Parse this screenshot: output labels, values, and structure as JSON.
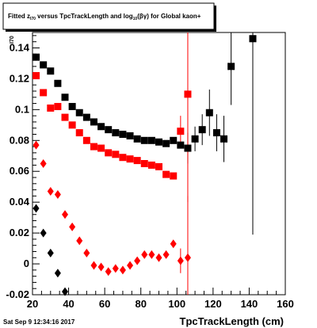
{
  "chart_data": {
    "type": "scatter",
    "title": "Fitted  z_70 versus TpcTrackLength and log_10(βγ) for Global kaon+",
    "title_parts": {
      "pre": "Fitted  z",
      "sub1": "I70",
      "mid": " versus TpcTrackLength and log",
      "sub2": "10",
      "post": "(βγ) for Global kaon+"
    },
    "xlabel": "TpcTrackLength (cm)",
    "ylabel": "I70",
    "xlim": [
      20,
      160
    ],
    "ylim": [
      -0.02,
      0.15
    ],
    "xticks": [
      20,
      40,
      60,
      80,
      100,
      120,
      140,
      160
    ],
    "yticks": [
      -0.02,
      0,
      0.02,
      0.04,
      0.06,
      0.08,
      0.1,
      0.12,
      0.14
    ],
    "ytick_labels": [
      "-0.02",
      "0",
      "0.02",
      "0.04",
      "0.06",
      "0.08",
      "0.1",
      "0.12",
      "0.14"
    ],
    "datestamp": "Sat Sep  9 12:34:16 2017",
    "series": [
      {
        "color": "#000000",
        "marker": "square",
        "points": [
          {
            "x": 22,
            "y": 0.134
          },
          {
            "x": 26,
            "y": 0.129
          },
          {
            "x": 30,
            "y": 0.125
          },
          {
            "x": 34,
            "y": 0.117
          },
          {
            "x": 38,
            "y": 0.108
          },
          {
            "x": 42,
            "y": 0.102
          },
          {
            "x": 46,
            "y": 0.098
          },
          {
            "x": 50,
            "y": 0.095
          },
          {
            "x": 54,
            "y": 0.092
          },
          {
            "x": 58,
            "y": 0.089
          },
          {
            "x": 62,
            "y": 0.087
          },
          {
            "x": 66,
            "y": 0.085
          },
          {
            "x": 70,
            "y": 0.084
          },
          {
            "x": 74,
            "y": 0.083
          },
          {
            "x": 78,
            "y": 0.081
          },
          {
            "x": 82,
            "y": 0.08
          },
          {
            "x": 86,
            "y": 0.08
          },
          {
            "x": 90,
            "y": 0.079
          },
          {
            "x": 94,
            "y": 0.078
          },
          {
            "x": 98,
            "y": 0.08
          },
          {
            "x": 102,
            "y": 0.077
          },
          {
            "x": 106,
            "y": 0.075,
            "err": 0.01
          },
          {
            "x": 110,
            "y": 0.081,
            "err": 0.008
          },
          {
            "x": 114,
            "y": 0.087,
            "err": 0.01
          },
          {
            "x": 118,
            "y": 0.098,
            "err": 0.015
          },
          {
            "x": 122,
            "y": 0.085,
            "err": 0.012
          },
          {
            "x": 126,
            "y": 0.081,
            "err": 0.015
          },
          {
            "x": 130,
            "y": 0.128,
            "err": 0.025
          },
          {
            "x": 142,
            "y": 0.146,
            "err": 0.127
          }
        ]
      },
      {
        "color": "#ff0000",
        "marker": "square",
        "points": [
          {
            "x": 22,
            "y": 0.122
          },
          {
            "x": 26,
            "y": 0.111
          },
          {
            "x": 30,
            "y": 0.101
          },
          {
            "x": 34,
            "y": 0.102
          },
          {
            "x": 38,
            "y": 0.095
          },
          {
            "x": 42,
            "y": 0.09
          },
          {
            "x": 46,
            "y": 0.085
          },
          {
            "x": 50,
            "y": 0.08
          },
          {
            "x": 54,
            "y": 0.076
          },
          {
            "x": 58,
            "y": 0.075
          },
          {
            "x": 62,
            "y": 0.072
          },
          {
            "x": 66,
            "y": 0.071
          },
          {
            "x": 70,
            "y": 0.069
          },
          {
            "x": 74,
            "y": 0.068
          },
          {
            "x": 78,
            "y": 0.067
          },
          {
            "x": 82,
            "y": 0.065
          },
          {
            "x": 86,
            "y": 0.064
          },
          {
            "x": 90,
            "y": 0.063
          },
          {
            "x": 94,
            "y": 0.058
          },
          {
            "x": 98,
            "y": 0.057
          },
          {
            "x": 102,
            "y": 0.086,
            "err": 0.01
          },
          {
            "x": 106,
            "y": 0.11,
            "err": 0.07
          }
        ]
      },
      {
        "color": "#ff0000",
        "marker": "diamond",
        "points": [
          {
            "x": 22,
            "y": 0.077
          },
          {
            "x": 26,
            "y": 0.065
          },
          {
            "x": 30,
            "y": 0.047
          },
          {
            "x": 34,
            "y": 0.045
          },
          {
            "x": 38,
            "y": 0.032
          },
          {
            "x": 42,
            "y": 0.024
          },
          {
            "x": 46,
            "y": 0.015
          },
          {
            "x": 50,
            "y": 0.007
          },
          {
            "x": 54,
            "y": -0.001
          },
          {
            "x": 58,
            "y": -0.002
          },
          {
            "x": 62,
            "y": -0.005
          },
          {
            "x": 66,
            "y": -0.003
          },
          {
            "x": 70,
            "y": -0.004
          },
          {
            "x": 74,
            "y": -0.001
          },
          {
            "x": 78,
            "y": 0.002
          },
          {
            "x": 82,
            "y": 0.006
          },
          {
            "x": 86,
            "y": 0.006
          },
          {
            "x": 90,
            "y": 0.004
          },
          {
            "x": 94,
            "y": 0.006
          },
          {
            "x": 98,
            "y": 0.013
          },
          {
            "x": 102,
            "y": 0.002,
            "err": 0.008
          },
          {
            "x": 106,
            "y": 0.004,
            "err": 0.04
          }
        ]
      },
      {
        "color": "#000000",
        "marker": "diamond",
        "points": [
          {
            "x": 22,
            "y": 0.036
          },
          {
            "x": 26,
            "y": 0.02
          },
          {
            "x": 30,
            "y": 0.007
          },
          {
            "x": 34,
            "y": -0.006
          },
          {
            "x": 38,
            "y": -0.018
          }
        ]
      }
    ]
  }
}
